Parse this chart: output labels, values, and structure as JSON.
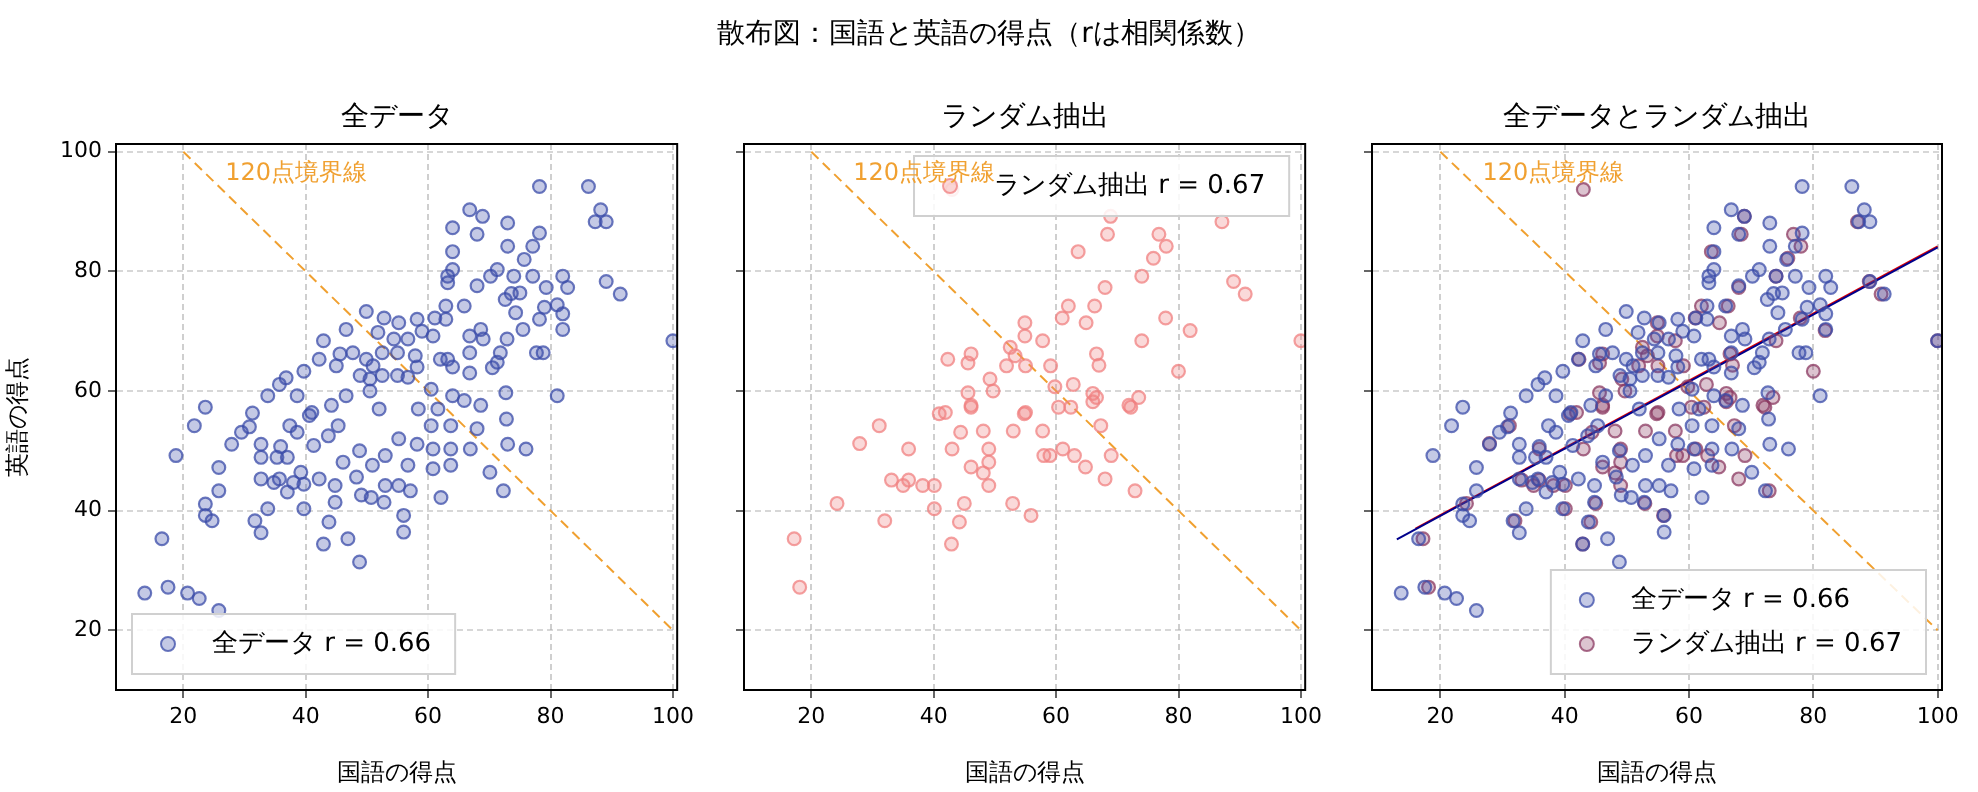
{
  "chart_data": [
    {
      "type": "scatter",
      "title": "全データ",
      "xlabel": "国語の得点",
      "ylabel": "英語の得点",
      "xlim": [
        9,
        100.7
      ],
      "ylim": [
        10,
        101.3
      ],
      "xticks": [
        20,
        40,
        60,
        80,
        100
      ],
      "yticks": [
        20,
        40,
        60,
        80,
        100
      ],
      "grid": true,
      "legend": "bottom left",
      "marker": "circle",
      "annotations": [
        "散布図：国語と英語の得点（rは相関係数）"
      ],
      "series": [
        {
          "name": "全データ r = 0.66",
          "color": "#3a4ba8",
          "x": [
            78.2,
            86.2,
            88.2,
            87.3,
            89.1,
            66.8,
            68.9,
            64,
            73,
            68,
            78.2,
            77.1,
            73,
            64,
            75.7,
            64,
            63.2,
            63.2,
            71.3,
            70.2,
            74,
            68,
            72.6,
            73.6,
            75,
            77.1,
            79.3,
            82,
            82.8,
            89.1,
            91.4,
            81.1,
            82,
            82,
            78.2,
            79,
            74.3,
            75.5,
            72.9,
            71.8,
            68.6,
            69,
            77.7,
            78.8,
            100,
            65.9,
            62.9,
            61.1,
            62.9,
            66.8,
            66.8,
            71.3,
            70.5,
            60.8,
            58.2,
            59,
            63.2,
            64,
            66.8,
            62,
            57.9,
            55.2,
            52.8,
            49.9,
            51.8,
            54.4,
            56.7,
            55,
            52.5,
            49.9,
            51,
            52.5,
            55,
            56.7,
            58.2,
            46.6,
            42.9,
            45.6,
            47.7,
            45,
            42.2,
            48.9,
            50.5,
            50.5,
            39.7,
            36.8,
            35.7,
            33.8,
            38.6,
            23.6,
            46.6,
            60.5,
            64,
            65.9,
            72.7,
            81.1,
            21.8,
            18.8,
            27.9,
            29.5,
            30.8,
            32.7,
            35.9,
            32.7,
            35.3,
            25.8,
            32.7,
            34.8,
            35.7,
            38,
            39.7,
            25.8,
            23.6,
            23.6,
            24.7,
            31.7,
            32.7,
            33.8,
            37,
            39.7,
            43.8,
            46.9,
            42.9,
            48.8,
            16.5,
            13.7,
            17.5,
            20.7,
            22.6,
            25.8,
            37,
            38.6,
            41.3,
            39.2,
            42.2,
            44.8,
            44.8,
            49.1,
            50.7,
            52.8,
            56,
            56,
            48.3,
            53,
            55.2,
            57.1,
            48.8,
            46.1,
            50.9,
            53,
            56.7,
            55.2,
            58.2,
            60.8,
            63.7,
            60.8,
            63.7,
            62.1,
            66.9,
            70.1,
            72.3,
            73,
            76,
            72.8,
            68,
            63.7,
            60.5,
            45.3,
            40.6,
            37.4,
            43.7,
            44.2,
            41,
            52,
            58.4,
            61.6,
            68.6,
            31.3
          ],
          "values": [
            94.2,
            94.2,
            90.3,
            88.3,
            88.3,
            90.3,
            89.2,
            87.3,
            88.1,
            86.2,
            86.4,
            84.2,
            84.2,
            83.3,
            82,
            80.3,
            79.2,
            78.1,
            80.3,
            79.2,
            79.2,
            77.6,
            75.3,
            76.3,
            76.4,
            79.2,
            77.3,
            79.2,
            77.3,
            78.3,
            76.2,
            74.4,
            72.9,
            70.3,
            72,
            74,
            73.1,
            70.3,
            68.7,
            66.4,
            70.3,
            68.7,
            66.4,
            66.4,
            68.4,
            74.2,
            74.2,
            72.2,
            72,
            69.2,
            66.4,
            64.8,
            63.9,
            69.2,
            72,
            70,
            65.3,
            64,
            63,
            65.3,
            65.9,
            71.4,
            72.2,
            73.3,
            69.8,
            68.7,
            68.7,
            66.4,
            66.4,
            65.3,
            64.2,
            62.6,
            62.6,
            62.3,
            64,
            70.3,
            68.4,
            66.2,
            66.4,
            64.2,
            65.3,
            62.6,
            62,
            60,
            63.3,
            62.2,
            61.1,
            59.2,
            59.2,
            57.3,
            59.2,
            60.3,
            59.2,
            58.4,
            59.7,
            59.2,
            54.2,
            49.2,
            51.1,
            53.1,
            54,
            51.1,
            50.7,
            48.9,
            48.9,
            47.2,
            45.3,
            44.7,
            45.3,
            44.7,
            44.4,
            43.3,
            41.1,
            39.2,
            38.3,
            38.3,
            36.3,
            40.3,
            43.1,
            40.3,
            38.1,
            35.3,
            34.4,
            31.4,
            35.3,
            26.2,
            27.2,
            26.2,
            25.3,
            23.3,
            48.9,
            53.1,
            50.9,
            46.4,
            45.3,
            44.2,
            41.4,
            42.6,
            42.2,
            41.4,
            39.2,
            36.4,
            45.6,
            44.2,
            44.2,
            43.3,
            50,
            48.1,
            47.6,
            49.2,
            47.6,
            52,
            51.1,
            50.3,
            50.3,
            47,
            47.6,
            42.2,
            50.3,
            46.4,
            43.3,
            51.1,
            50.3,
            55.3,
            53.7,
            54.2,
            54.2,
            54.2,
            55.9,
            54.2,
            52.5,
            57.6,
            56.4,
            57,
            57,
            57,
            57.6,
            56.3
          ]
        },
        {
          "type": "line",
          "name": "120点境界線",
          "marker": "none",
          "color": "#f0a030",
          "line_style": "dashed",
          "x": [
            20,
            100
          ],
          "values": [
            100,
            20
          ]
        }
      ]
    },
    {
      "type": "scatter",
      "title": "ランダム抽出",
      "xlabel": "国語の得点",
      "xlim": [
        9,
        100.7
      ],
      "ylim": [
        10,
        101.3
      ],
      "xticks": [
        20,
        40,
        60,
        80,
        100
      ],
      "yticks": [
        20,
        40,
        60,
        80,
        100
      ],
      "grid": true,
      "legend": "top right",
      "marker": "circle",
      "tick_labels": "x",
      "series": [
        {
          "name": "ランダム抽出 r = 0.67",
          "color": "#f08080",
          "x": [
            43,
            68.9,
            87.1,
            68.4,
            76.8,
            78,
            75.9,
            63.6,
            74,
            89,
            90.9,
            68,
            66.3,
            62,
            61,
            64.9,
            77.9,
            81.9,
            74,
            66.6,
            67,
            80,
            54.9,
            54.9,
            57.8,
            52.5,
            53.3,
            51.9,
            55,
            59.1,
            46.1,
            45.6,
            42.3,
            49.2,
            49.7,
            45.6,
            46.1,
            55,
            59.8,
            62.8,
            66,
            66,
            71.9,
            41.9,
            40.9,
            46.1,
            53,
            57.8,
            54.8,
            60.4,
            62.4,
            66.6,
            72.2,
            73.5,
            67.3,
            31.1,
            27.9,
            35.9,
            43,
            44.4,
            48.1,
            49,
            49,
            46.1,
            48.1,
            49,
            58,
            59,
            61.1,
            63,
            64.8,
            69,
            68,
            72.9,
            33.1,
            35,
            35.9,
            38.2,
            40.1,
            40.1,
            45,
            44.2,
            42.9,
            52.9,
            55.9,
            24.2,
            32,
            17.2,
            18.1,
            100
          ],
          "values": [
            93.7,
            89.2,
            88.3,
            86.2,
            86.2,
            84.2,
            82.2,
            83.3,
            79.2,
            78.3,
            76.2,
            77.3,
            74.2,
            74.2,
            72.2,
            71.4,
            72.2,
            70.1,
            68.4,
            66.2,
            64.3,
            63.3,
            71.4,
            69.2,
            68.4,
            67.3,
            65.9,
            64.2,
            64.2,
            64.2,
            66.2,
            64.7,
            65.3,
            62,
            60,
            59.7,
            57.6,
            56.4,
            60.7,
            61.1,
            59.6,
            58.2,
            57.6,
            56.4,
            56.2,
            57.3,
            53.3,
            53.3,
            56.2,
            57.3,
            57.3,
            58.9,
            57.3,
            58.9,
            54.2,
            54.2,
            51.2,
            50.3,
            50.3,
            53.1,
            53.3,
            50.3,
            48.1,
            47.3,
            46.3,
            44.2,
            49.2,
            49.2,
            50.3,
            49.2,
            47.3,
            49.2,
            45.3,
            43.3,
            45.1,
            44.2,
            45.1,
            44.2,
            44.2,
            40.3,
            41.2,
            38.1,
            34.4,
            41.2,
            39.2,
            41.2,
            38.3,
            35.3,
            27.2,
            68.4
          ]
        },
        {
          "type": "line",
          "name": "120点境界線",
          "marker": "none",
          "color": "#f0a030",
          "line_style": "dashed",
          "x": [
            20,
            100
          ],
          "values": [
            100,
            20
          ]
        }
      ]
    },
    {
      "type": "scatter",
      "title": "全データとランダム抽出",
      "xlabel": "国語の得点",
      "xlim": [
        9,
        100.7
      ],
      "ylim": [
        10,
        101.3
      ],
      "xticks": [
        20,
        40,
        60,
        80,
        100
      ],
      "yticks": [
        20,
        40,
        60,
        80,
        100
      ],
      "grid": true,
      "legend": "bottom right",
      "marker": "circle",
      "tick_labels": "x",
      "series": [
        {
          "name": "全データ r = 0.66",
          "color": "#3a4ba8",
          "x": [
            78.2,
            86.2,
            88.2,
            87.3,
            89.1,
            66.8,
            68.9,
            64,
            73,
            68,
            78.2,
            77.1,
            73,
            64,
            75.7,
            64,
            63.2,
            63.2,
            71.3,
            70.2,
            74,
            68,
            72.6,
            73.6,
            75,
            77.1,
            79.3,
            82,
            82.8,
            89.1,
            91.4,
            81.1,
            82,
            82,
            78.2,
            79,
            74.3,
            75.5,
            72.9,
            71.8,
            68.6,
            69,
            77.7,
            78.8,
            100,
            65.9,
            62.9,
            61.1,
            62.9,
            66.8,
            66.8,
            71.3,
            70.5,
            60.8,
            58.2,
            59,
            63.2,
            64,
            66.8,
            62,
            57.9,
            55.2,
            52.8,
            49.9,
            51.8,
            54.4,
            56.7,
            55,
            52.5,
            49.9,
            51,
            52.5,
            55,
            56.7,
            58.2,
            46.6,
            42.9,
            45.6,
            47.7,
            45,
            42.2,
            48.9,
            50.5,
            50.5,
            39.7,
            36.8,
            35.7,
            33.8,
            38.6,
            23.6,
            46.6,
            60.5,
            64,
            65.9,
            72.7,
            81.1,
            21.8,
            18.8,
            27.9,
            29.5,
            30.8,
            32.7,
            35.9,
            32.7,
            35.3,
            25.8,
            32.7,
            34.8,
            35.7,
            38,
            39.7,
            25.8,
            23.6,
            23.6,
            24.7,
            31.7,
            32.7,
            33.8,
            37,
            39.7,
            43.8,
            46.9,
            42.9,
            48.8,
            16.5,
            13.7,
            17.5,
            20.7,
            22.6,
            25.8,
            37,
            38.6,
            41.3,
            39.2,
            42.2,
            44.8,
            44.8,
            49.1,
            50.7,
            52.8,
            56,
            56,
            48.3,
            53,
            55.2,
            57.1,
            48.8,
            46.1,
            50.9,
            53,
            56.7,
            55.2,
            58.2,
            60.8,
            63.7,
            60.8,
            63.7,
            62.1,
            66.9,
            70.1,
            72.3,
            73,
            76,
            72.8,
            68,
            63.7,
            60.5,
            45.3,
            40.6,
            37.4,
            43.7,
            44.2,
            41,
            52,
            58.4,
            61.6,
            68.6,
            31.3
          ],
          "values": [
            94.2,
            94.2,
            90.3,
            88.3,
            88.3,
            90.3,
            89.2,
            87.3,
            88.1,
            86.2,
            86.4,
            84.2,
            84.2,
            83.3,
            82,
            80.3,
            79.2,
            78.1,
            80.3,
            79.2,
            79.2,
            77.6,
            75.3,
            76.3,
            76.4,
            79.2,
            77.3,
            79.2,
            77.3,
            78.3,
            76.2,
            74.4,
            72.9,
            70.3,
            72,
            74,
            73.1,
            70.3,
            68.7,
            66.4,
            70.3,
            68.7,
            66.4,
            66.4,
            68.4,
            74.2,
            74.2,
            72.2,
            72,
            69.2,
            66.4,
            64.8,
            63.9,
            69.2,
            72,
            70,
            65.3,
            64,
            63,
            65.3,
            65.9,
            71.4,
            72.2,
            73.3,
            69.8,
            68.7,
            68.7,
            66.4,
            66.4,
            65.3,
            64.2,
            62.6,
            62.6,
            62.3,
            64,
            70.3,
            68.4,
            66.2,
            66.4,
            64.2,
            65.3,
            62.6,
            62,
            60,
            63.3,
            62.2,
            61.1,
            59.2,
            59.2,
            57.3,
            59.2,
            60.3,
            59.2,
            58.4,
            59.7,
            59.2,
            54.2,
            49.2,
            51.1,
            53.1,
            54,
            51.1,
            50.7,
            48.9,
            48.9,
            47.2,
            45.3,
            44.7,
            45.3,
            44.7,
            44.4,
            43.3,
            41.1,
            39.2,
            38.3,
            38.3,
            36.3,
            40.3,
            43.1,
            40.3,
            38.1,
            35.3,
            34.4,
            31.4,
            35.3,
            26.2,
            27.2,
            26.2,
            25.3,
            23.3,
            48.9,
            53.1,
            50.9,
            46.4,
            45.3,
            44.2,
            41.4,
            42.6,
            42.2,
            41.4,
            39.2,
            36.4,
            45.6,
            44.2,
            44.2,
            43.3,
            50,
            48.1,
            47.6,
            49.2,
            47.6,
            52,
            51.1,
            50.3,
            50.3,
            47,
            47.6,
            42.2,
            50.3,
            46.4,
            43.3,
            51.1,
            50.3,
            55.3,
            53.7,
            54.2,
            54.2,
            54.2,
            55.9,
            54.2,
            52.5,
            57.6,
            56.4,
            57,
            57,
            57,
            57.6,
            56.3
          ]
        },
        {
          "name": "ランダム抽出 r = 0.67",
          "color": "#8b3a62",
          "x": [
            43,
            68.9,
            87.1,
            68.4,
            76.8,
            78,
            75.9,
            63.6,
            74,
            89,
            90.9,
            68,
            66.3,
            62,
            61,
            64.9,
            77.9,
            81.9,
            74,
            66.6,
            67,
            80,
            54.9,
            54.9,
            57.8,
            52.5,
            53.3,
            51.9,
            55,
            59.1,
            46.1,
            45.6,
            42.3,
            49.2,
            49.7,
            45.6,
            46.1,
            55,
            59.8,
            62.8,
            66,
            66,
            71.9,
            41.9,
            40.9,
            46.1,
            53,
            57.8,
            54.8,
            60.4,
            62.4,
            66.6,
            72.2,
            73.5,
            67.3,
            31.1,
            27.9,
            35.9,
            43,
            44.4,
            48.1,
            49,
            49,
            46.1,
            48.1,
            49,
            58,
            59,
            61.1,
            63,
            64.8,
            69,
            68,
            72.9,
            33.1,
            35,
            35.9,
            38.2,
            40.1,
            40.1,
            45,
            44.2,
            42.9,
            52.9,
            55.9,
            24.2,
            32,
            17.2,
            18.1,
            100
          ],
          "values": [
            93.7,
            89.2,
            88.3,
            86.2,
            86.2,
            84.2,
            82.2,
            83.3,
            79.2,
            78.3,
            76.2,
            77.3,
            74.2,
            74.2,
            72.2,
            71.4,
            72.2,
            70.1,
            68.4,
            66.2,
            64.3,
            63.3,
            71.4,
            69.2,
            68.4,
            67.3,
            65.9,
            64.2,
            64.2,
            64.2,
            66.2,
            64.7,
            65.3,
            62,
            60,
            59.7,
            57.6,
            56.4,
            60.7,
            61.1,
            59.6,
            58.2,
            57.6,
            56.4,
            56.2,
            57.3,
            53.3,
            53.3,
            56.2,
            57.3,
            57.3,
            58.9,
            57.3,
            58.9,
            54.2,
            54.2,
            51.2,
            50.3,
            50.3,
            53.1,
            53.3,
            50.3,
            48.1,
            47.3,
            46.3,
            44.2,
            49.2,
            49.2,
            50.3,
            49.2,
            47.3,
            49.2,
            45.3,
            43.3,
            45.1,
            44.2,
            45.1,
            44.2,
            44.2,
            40.3,
            41.2,
            38.1,
            34.4,
            41.2,
            39.2,
            41.2,
            38.3,
            35.3,
            27.2,
            68.4
          ]
        },
        {
          "type": "line",
          "marker": "none",
          "color": "#00008b",
          "line_style": "solid",
          "x": [
            13,
            100
          ],
          "values": [
            35.2,
            84
          ]
        },
        {
          "type": "line",
          "marker": "none",
          "color": "#e00000",
          "line_style": "solid",
          "x": [
            16,
            100
          ],
          "values": [
            37,
            84.2
          ]
        },
        {
          "type": "line",
          "name": "120点境界線",
          "marker": "none",
          "color": "#f0a030",
          "line_style": "dashed",
          "x": [
            20,
            100
          ],
          "values": [
            100,
            20
          ]
        }
      ]
    }
  ]
}
